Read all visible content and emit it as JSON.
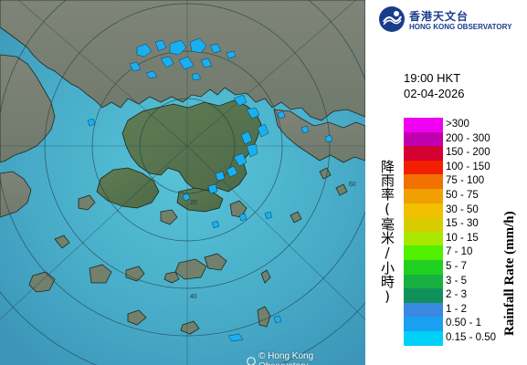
{
  "header": {
    "logo_zh": "香港天文台",
    "logo_en": "HONG KONG OBSERVATORY",
    "logo_icon": "hko-emblem-icon"
  },
  "timestamp": {
    "time": "19:00 HKT",
    "date": "02-04-2026"
  },
  "legend": {
    "title_zh": "降雨率(毫米/小時)",
    "title_en": "Rainfall Rate (mm/h)",
    "items": [
      {
        "label": ">300",
        "color": "#f000f0"
      },
      {
        "label": "200 - 300",
        "color": "#c000b0"
      },
      {
        "label": "150 - 200",
        "color": "#d40030"
      },
      {
        "label": "100 - 150",
        "color": "#f22000"
      },
      {
        "label": "75 - 100",
        "color": "#f07000"
      },
      {
        "label": "50 - 75",
        "color": "#f0a000"
      },
      {
        "label": "30 - 50",
        "color": "#f2c000"
      },
      {
        "label": "15 - 30",
        "color": "#d8cc00"
      },
      {
        "label": "10 - 15",
        "color": "#a8e800"
      },
      {
        "label": "7 - 10",
        "color": "#50f000"
      },
      {
        "label": "5 - 7",
        "color": "#20d020"
      },
      {
        "label": "3 - 5",
        "color": "#18b040"
      },
      {
        "label": "2 - 3",
        "color": "#10905a"
      },
      {
        "label": "1 - 2",
        "color": "#3a88e0"
      },
      {
        "label": "0.50 - 1",
        "color": "#1aa0f0"
      },
      {
        "label": "0.15 - 0.50",
        "color": "#00d0f8"
      }
    ]
  },
  "map": {
    "range_ring_labels": [
      "20",
      "40",
      "60"
    ],
    "copyright": "© Hong Kong Observatory",
    "colors": {
      "sea": "#50b8d0",
      "land": "#7c8a7c",
      "echo": "#1ab0f0"
    }
  }
}
